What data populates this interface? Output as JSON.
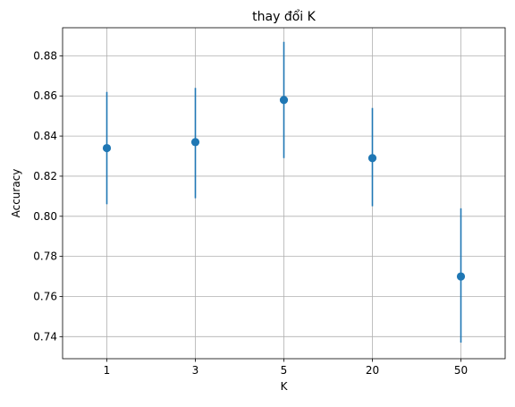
{
  "chart_data": {
    "type": "scatter",
    "title": "thay đổi K",
    "xlabel": "K",
    "ylabel": "Accuracy",
    "categories": [
      "1",
      "3",
      "5",
      "20",
      "50"
    ],
    "series": [
      {
        "values": [
          0.834,
          0.837,
          0.858,
          0.829,
          0.77
        ],
        "error_low": [
          0.806,
          0.809,
          0.829,
          0.805,
          0.737
        ],
        "error_high": [
          0.862,
          0.864,
          0.887,
          0.854,
          0.804
        ]
      }
    ],
    "y_ticks": [
      "0.74",
      "0.76",
      "0.78",
      "0.80",
      "0.82",
      "0.84",
      "0.86",
      "0.88"
    ],
    "ylim": [
      0.729,
      0.894
    ],
    "grid": true,
    "marker_color": "#1f77b4",
    "grid_color": "#b0b0b0"
  }
}
